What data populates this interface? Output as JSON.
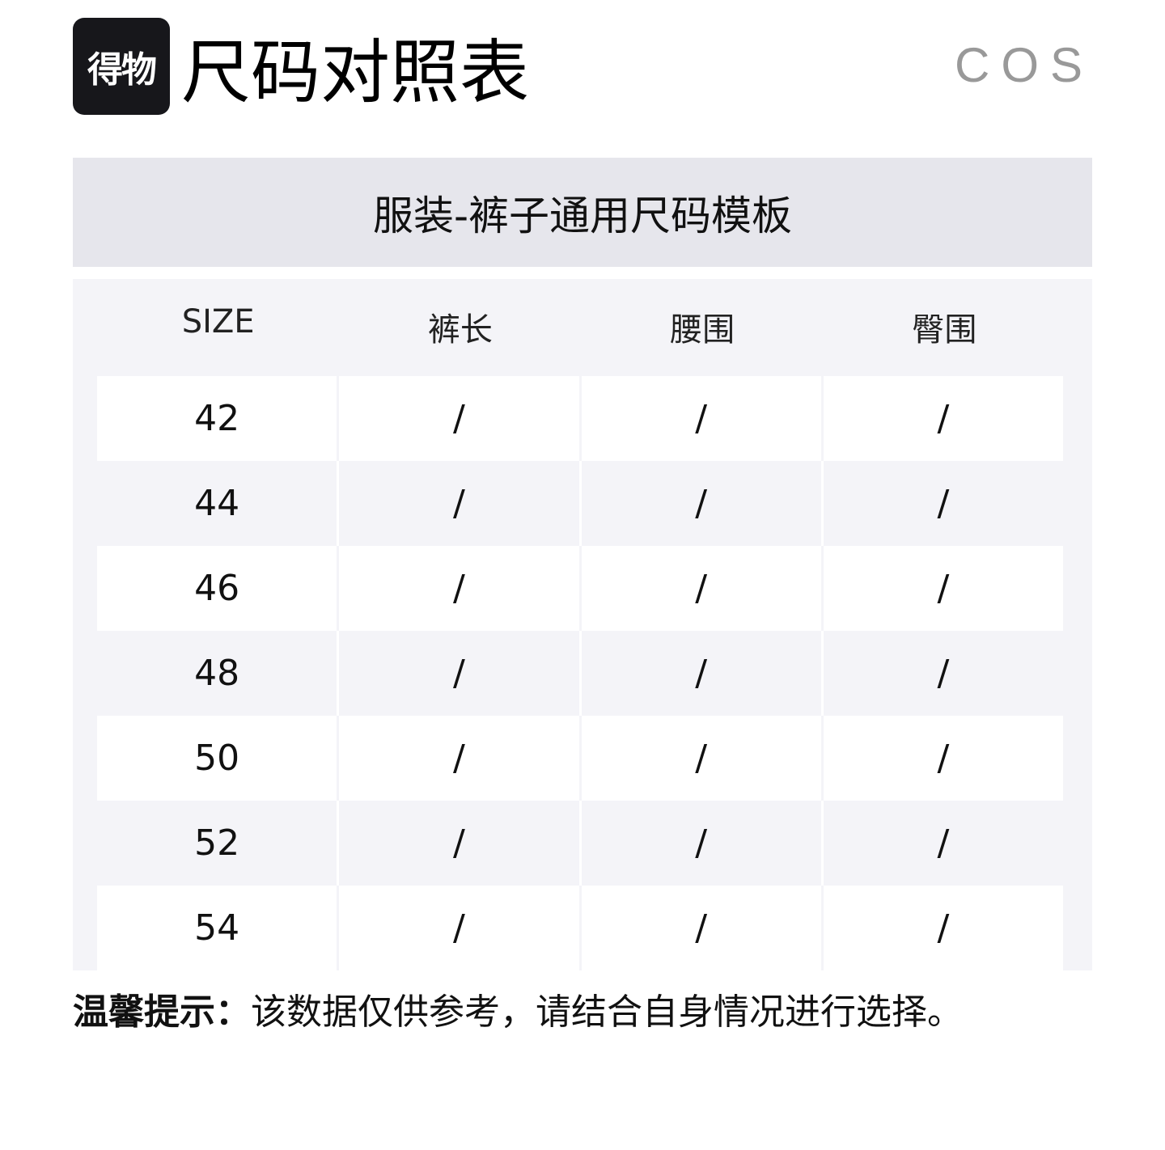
{
  "header": {
    "logo_text": "得物",
    "title": "尺码对照表",
    "brand": "COS"
  },
  "banner": {
    "title": "服装-裤子通用尺码模板"
  },
  "table": {
    "columns": [
      "SIZE",
      "裤长",
      "腰围",
      "臀围"
    ],
    "rows": [
      [
        "42",
        "/",
        "/",
        "/"
      ],
      [
        "44",
        "/",
        "/",
        "/"
      ],
      [
        "46",
        "/",
        "/",
        "/"
      ],
      [
        "48",
        "/",
        "/",
        "/"
      ],
      [
        "50",
        "/",
        "/",
        "/"
      ],
      [
        "52",
        "/",
        "/",
        "/"
      ],
      [
        "54",
        "/",
        "/",
        "/"
      ]
    ]
  },
  "note": {
    "label": "温馨提示：",
    "text": "该数据仅供参考，请结合自身情况进行选择。"
  },
  "colors": {
    "banner_bg": "#e6e6ec",
    "panel_bg": "#f4f4f8",
    "logo_bg": "#17171b"
  }
}
